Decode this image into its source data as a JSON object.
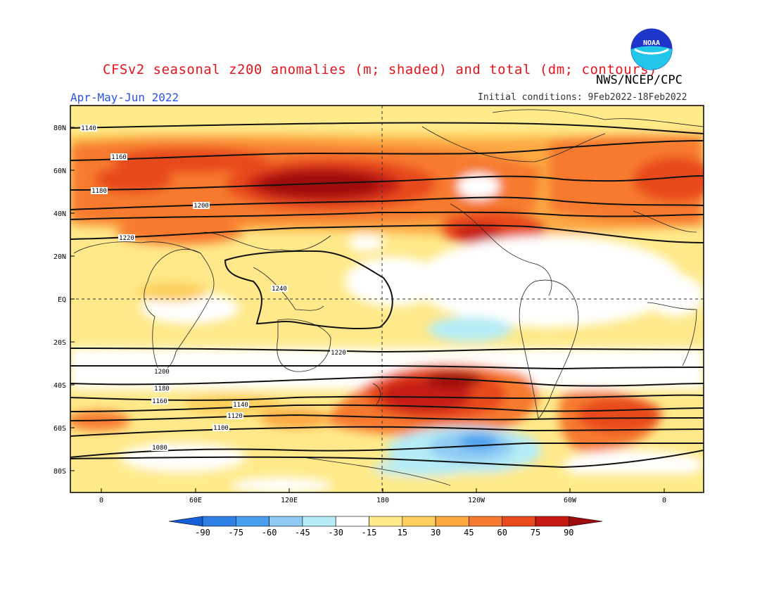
{
  "header": {
    "title": "CFSv2 seasonal z200 anomalies (m; shaded) and total (dm; contours)",
    "season": "Apr-May-Jun 2022",
    "agency": "NWS/NCEP/CPC",
    "initial_conditions": "Initial conditions: 9Feb2022-18Feb2022",
    "logo_text": "NOAA"
  },
  "map": {
    "lat_labels": [
      "80N",
      "60N",
      "40N",
      "20N",
      "EQ",
      "20S",
      "40S",
      "60S",
      "80S"
    ],
    "lon_labels": [
      "0",
      "60E",
      "120E",
      "180",
      "120W",
      "60W",
      "0"
    ],
    "contour_labels": [
      "1140",
      "1160",
      "1180",
      "1200",
      "1220",
      "1240",
      "1220",
      "1200",
      "1180",
      "1160",
      "1140",
      "1120",
      "1100",
      "1080"
    ]
  },
  "colorbar": {
    "ticks": [
      "-90",
      "-75",
      "-60",
      "-45",
      "-30",
      "-15",
      "15",
      "30",
      "45",
      "60",
      "75",
      "90"
    ],
    "colors": [
      "#1560d8",
      "#2f80e6",
      "#4a9ef0",
      "#8ecbf4",
      "#b5ecf6",
      "#ffffff",
      "#ffeb8a",
      "#fdcf5c",
      "#fca942",
      "#f77a2e",
      "#e84a1d",
      "#c61a12",
      "#9c0c0c"
    ]
  }
}
